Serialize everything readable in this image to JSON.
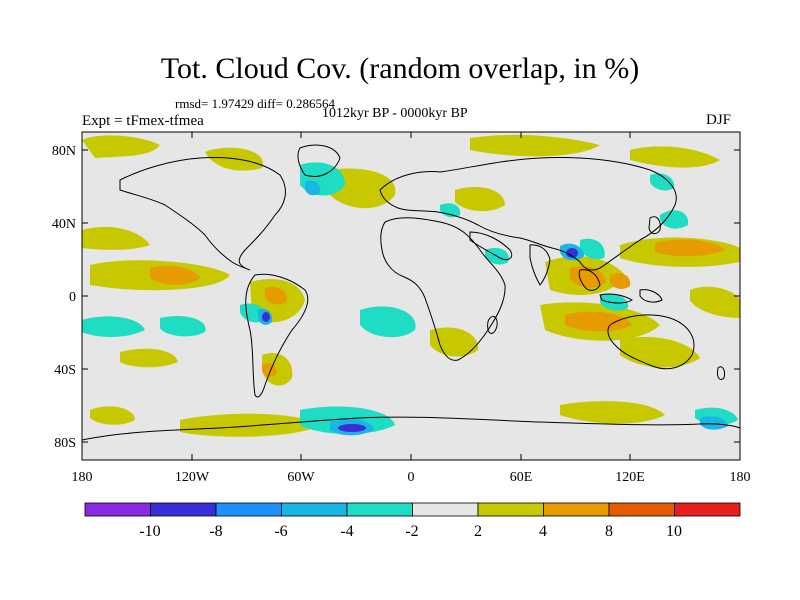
{
  "header": {
    "title": "Tot. Cloud Cov. (random overlap, in %)",
    "stats": "rmsd= 1.97429 diff= 0.286564",
    "period": "1012kyr BP - 0000kyr BP",
    "experiment": "Expt = tFmex-tfmea",
    "season": "DJF"
  },
  "axes": {
    "y_ticks": [
      "80N",
      "40N",
      "0",
      "40S",
      "80S"
    ],
    "x_ticks": [
      "180",
      "120W",
      "60W",
      "0",
      "60E",
      "120E",
      "180"
    ]
  },
  "colorbar": {
    "labels": [
      "-10",
      "-8",
      "-6",
      "-4",
      "-2",
      "2",
      "4",
      "8",
      "10"
    ],
    "colors": [
      "#8a2be2",
      "#3a2fd6",
      "#1e90ff",
      "#19b5e3",
      "#1fdcc4",
      "#e6e6e6",
      "#c8c800",
      "#e69b00",
      "#e65c00",
      "#e61e1e"
    ]
  },
  "colors": {
    "ocean_land_bg": "#e6e6e6",
    "pos_small": "#c8c800",
    "pos_mid": "#e69b00",
    "neg_small": "#1fdcc4",
    "neg_mid": "#19b5e3",
    "neg_strong": "#3a2fd6"
  }
}
